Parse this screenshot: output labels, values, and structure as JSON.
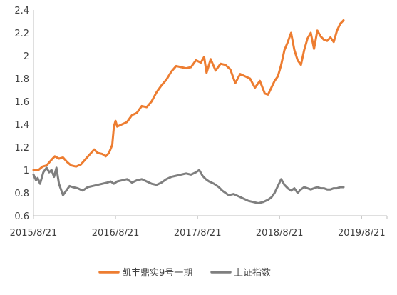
{
  "chart_data": {
    "type": "line",
    "title": "",
    "xlabel": "",
    "ylabel": "",
    "ylim": [
      0.6,
      2.4
    ],
    "y_ticks": [
      "0.6",
      "0.8",
      "1",
      "1.2",
      "1.4",
      "1.6",
      "1.8",
      "2",
      "2.2",
      "2.4"
    ],
    "x_range": [
      2015.64,
      2019.95
    ],
    "x_ticks": [
      {
        "label": "2015/8/21",
        "x": 2015.64
      },
      {
        "label": "2016/8/21",
        "x": 2016.64
      },
      {
        "label": "2017/8/21",
        "x": 2017.64
      },
      {
        "label": "2018/8/21",
        "x": 2018.64
      },
      {
        "label": "2019/8/21",
        "x": 2019.64
      }
    ],
    "grid": false,
    "legend_position": "bottom",
    "series": [
      {
        "name": "凯丰鼎实9号一期",
        "color": "#ED7D31",
        "points": [
          [
            2015.64,
            1.0
          ],
          [
            2015.7,
            1.0
          ],
          [
            2015.75,
            1.03
          ],
          [
            2015.8,
            1.04
          ],
          [
            2015.86,
            1.09
          ],
          [
            2015.9,
            1.12
          ],
          [
            2015.95,
            1.1
          ],
          [
            2016.0,
            1.11
          ],
          [
            2016.05,
            1.07
          ],
          [
            2016.1,
            1.04
          ],
          [
            2016.16,
            1.03
          ],
          [
            2016.22,
            1.05
          ],
          [
            2016.28,
            1.1
          ],
          [
            2016.33,
            1.14
          ],
          [
            2016.38,
            1.18
          ],
          [
            2016.42,
            1.15
          ],
          [
            2016.48,
            1.14
          ],
          [
            2016.52,
            1.12
          ],
          [
            2016.56,
            1.15
          ],
          [
            2016.6,
            1.22
          ],
          [
            2016.62,
            1.38
          ],
          [
            2016.64,
            1.43
          ],
          [
            2016.66,
            1.38
          ],
          [
            2016.72,
            1.4
          ],
          [
            2016.78,
            1.42
          ],
          [
            2016.84,
            1.48
          ],
          [
            2016.9,
            1.5
          ],
          [
            2016.96,
            1.56
          ],
          [
            2017.02,
            1.55
          ],
          [
            2017.08,
            1.6
          ],
          [
            2017.14,
            1.68
          ],
          [
            2017.2,
            1.74
          ],
          [
            2017.26,
            1.79
          ],
          [
            2017.32,
            1.86
          ],
          [
            2017.38,
            1.91
          ],
          [
            2017.44,
            1.9
          ],
          [
            2017.5,
            1.89
          ],
          [
            2017.56,
            1.9
          ],
          [
            2017.62,
            1.96
          ],
          [
            2017.68,
            1.94
          ],
          [
            2017.72,
            1.99
          ],
          [
            2017.75,
            1.85
          ],
          [
            2017.8,
            1.97
          ],
          [
            2017.86,
            1.87
          ],
          [
            2017.92,
            1.93
          ],
          [
            2017.98,
            1.92
          ],
          [
            2018.04,
            1.88
          ],
          [
            2018.1,
            1.76
          ],
          [
            2018.16,
            1.84
          ],
          [
            2018.22,
            1.82
          ],
          [
            2018.28,
            1.8
          ],
          [
            2018.34,
            1.72
          ],
          [
            2018.4,
            1.78
          ],
          [
            2018.46,
            1.67
          ],
          [
            2018.5,
            1.66
          ],
          [
            2018.54,
            1.72
          ],
          [
            2018.58,
            1.78
          ],
          [
            2018.62,
            1.82
          ],
          [
            2018.66,
            1.92
          ],
          [
            2018.7,
            2.05
          ],
          [
            2018.74,
            2.12
          ],
          [
            2018.78,
            2.2
          ],
          [
            2018.82,
            2.05
          ],
          [
            2018.86,
            1.96
          ],
          [
            2018.9,
            1.92
          ],
          [
            2018.94,
            2.05
          ],
          [
            2018.98,
            2.15
          ],
          [
            2019.02,
            2.2
          ],
          [
            2019.06,
            2.06
          ],
          [
            2019.1,
            2.22
          ],
          [
            2019.14,
            2.17
          ],
          [
            2019.18,
            2.14
          ],
          [
            2019.22,
            2.13
          ],
          [
            2019.26,
            2.16
          ],
          [
            2019.3,
            2.12
          ],
          [
            2019.34,
            2.22
          ],
          [
            2019.38,
            2.28
          ],
          [
            2019.42,
            2.31
          ]
        ]
      },
      {
        "name": "上证指数",
        "color": "#7F7F7F",
        "points": [
          [
            2015.64,
            0.96
          ],
          [
            2015.67,
            0.91
          ],
          [
            2015.69,
            0.93
          ],
          [
            2015.72,
            0.88
          ],
          [
            2015.76,
            0.98
          ],
          [
            2015.8,
            1.02
          ],
          [
            2015.83,
            0.98
          ],
          [
            2015.86,
            1.0
          ],
          [
            2015.89,
            0.94
          ],
          [
            2015.92,
            1.02
          ],
          [
            2015.95,
            0.88
          ],
          [
            2015.98,
            0.82
          ],
          [
            2016.0,
            0.78
          ],
          [
            2016.04,
            0.82
          ],
          [
            2016.08,
            0.86
          ],
          [
            2016.12,
            0.85
          ],
          [
            2016.18,
            0.84
          ],
          [
            2016.24,
            0.82
          ],
          [
            2016.3,
            0.85
          ],
          [
            2016.36,
            0.86
          ],
          [
            2016.42,
            0.87
          ],
          [
            2016.48,
            0.88
          ],
          [
            2016.54,
            0.89
          ],
          [
            2016.58,
            0.9
          ],
          [
            2016.62,
            0.88
          ],
          [
            2016.66,
            0.9
          ],
          [
            2016.72,
            0.91
          ],
          [
            2016.78,
            0.92
          ],
          [
            2016.84,
            0.89
          ],
          [
            2016.9,
            0.91
          ],
          [
            2016.96,
            0.92
          ],
          [
            2017.02,
            0.9
          ],
          [
            2017.08,
            0.88
          ],
          [
            2017.14,
            0.87
          ],
          [
            2017.2,
            0.89
          ],
          [
            2017.26,
            0.92
          ],
          [
            2017.32,
            0.94
          ],
          [
            2017.38,
            0.95
          ],
          [
            2017.44,
            0.96
          ],
          [
            2017.5,
            0.97
          ],
          [
            2017.56,
            0.96
          ],
          [
            2017.62,
            0.98
          ],
          [
            2017.66,
            1.0
          ],
          [
            2017.7,
            0.95
          ],
          [
            2017.74,
            0.92
          ],
          [
            2017.78,
            0.9
          ],
          [
            2017.84,
            0.88
          ],
          [
            2017.9,
            0.85
          ],
          [
            2017.94,
            0.82
          ],
          [
            2017.98,
            0.8
          ],
          [
            2018.02,
            0.78
          ],
          [
            2018.08,
            0.79
          ],
          [
            2018.14,
            0.77
          ],
          [
            2018.2,
            0.75
          ],
          [
            2018.26,
            0.73
          ],
          [
            2018.32,
            0.72
          ],
          [
            2018.38,
            0.71
          ],
          [
            2018.44,
            0.72
          ],
          [
            2018.5,
            0.74
          ],
          [
            2018.54,
            0.76
          ],
          [
            2018.58,
            0.8
          ],
          [
            2018.62,
            0.86
          ],
          [
            2018.66,
            0.92
          ],
          [
            2018.7,
            0.87
          ],
          [
            2018.74,
            0.84
          ],
          [
            2018.78,
            0.82
          ],
          [
            2018.82,
            0.84
          ],
          [
            2018.86,
            0.8
          ],
          [
            2018.9,
            0.83
          ],
          [
            2018.94,
            0.85
          ],
          [
            2018.98,
            0.84
          ],
          [
            2019.02,
            0.83
          ],
          [
            2019.06,
            0.84
          ],
          [
            2019.1,
            0.85
          ],
          [
            2019.14,
            0.84
          ],
          [
            2019.18,
            0.84
          ],
          [
            2019.22,
            0.83
          ],
          [
            2019.26,
            0.83
          ],
          [
            2019.3,
            0.84
          ],
          [
            2019.34,
            0.84
          ],
          [
            2019.38,
            0.85
          ],
          [
            2019.42,
            0.85
          ]
        ]
      }
    ]
  }
}
